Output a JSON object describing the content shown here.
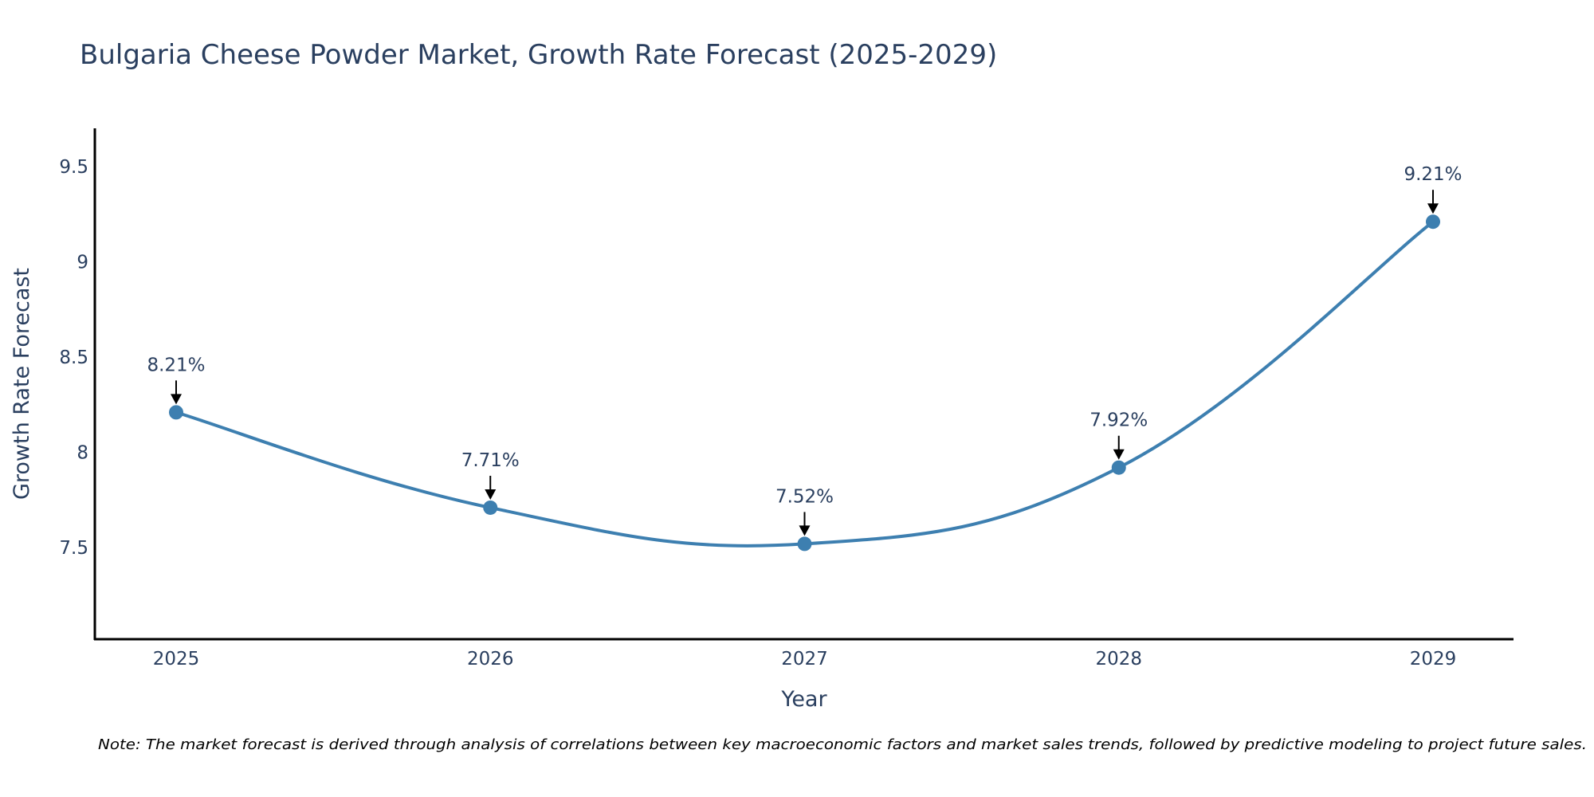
{
  "chart_data": {
    "type": "line",
    "title": "Bulgaria Cheese Powder Market, Growth Rate Forecast (2025-2029)",
    "xlabel": "Year",
    "ylabel": "Growth Rate Forecast",
    "categories": [
      "2025",
      "2026",
      "2027",
      "2028",
      "2029"
    ],
    "series": [
      {
        "name": "Growth Rate Forecast",
        "values": [
          8.21,
          7.71,
          7.52,
          7.92,
          9.21
        ],
        "labels": [
          "8.21%",
          "7.71%",
          "7.52%",
          "7.92%",
          "9.21%"
        ]
      }
    ],
    "yticks": [
      7.5,
      8,
      8.5,
      9,
      9.5
    ],
    "ytick_labels": [
      "7.5",
      "8",
      "8.5",
      "9",
      "9.5"
    ],
    "ylim": [
      7.02,
      9.7
    ],
    "grid": false,
    "line_color": "#3d7fb0",
    "axis_color": "#000000"
  },
  "note": "Note: The market forecast is derived through analysis of correlations between key macroeconomic factors and market sales trends, followed by predictive modeling to project future sales."
}
